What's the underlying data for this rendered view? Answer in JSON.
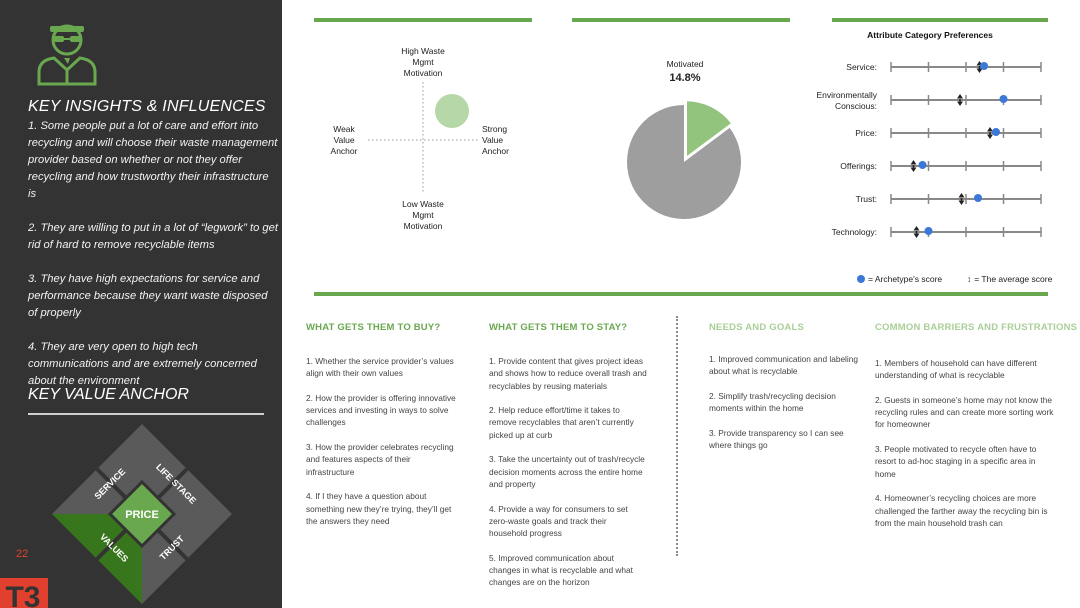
{
  "left_panel": {
    "key_insights_title": "KEY INSIGHTS & INFLUENCES",
    "insights": [
      "1. Some people put a lot of care and effort into recycling and will choose their waste management provider based on whether or not they offer recycling and how trustworthy their infrastructure is",
      "2. They are willing to put in a lot of “legwork” to get rid of hard to remove recyclable items",
      "3. They have high expectations for service and performance because they want waste disposed of properly",
      "4. They are very open to high tech communications and are extremely concerned about the environment"
    ],
    "key_value_anchor_title": "KEY VALUE ANCHOR",
    "diamond": {
      "center": "PRICE",
      "top_left": "SERVICE",
      "top_right": "LIFE STAGE",
      "bottom_left": "VALUES",
      "bottom_right": "TRUST",
      "highlighted": [
        "PRICE",
        "VALUES"
      ]
    },
    "page_number": "22",
    "logo_text": "T3"
  },
  "quadrant": {
    "top": "High Waste Mgmt Motivation",
    "bottom": "Low Waste Mgmt Motivation",
    "left": "Weak Value Anchor",
    "right": "Strong Value Anchor",
    "bubble_position": "upper-right"
  },
  "pie": {
    "label": "Motivated",
    "value_text": "14.8%",
    "percent": 14.8,
    "colors": {
      "highlight": "#93c47d",
      "rest": "#9e9e9e"
    }
  },
  "attributes": {
    "title": "Attribute Category Preferences",
    "scale_ticks": 5,
    "items": [
      {
        "label": "Service:",
        "archetype": 0.62,
        "average": 0.59
      },
      {
        "label": "Environmentally Conscious:",
        "archetype": 0.75,
        "average": 0.46
      },
      {
        "label": "Price:",
        "archetype": 0.7,
        "average": 0.66
      },
      {
        "label": "Offerings:",
        "archetype": 0.21,
        "average": 0.15
      },
      {
        "label": "Trust:",
        "archetype": 0.58,
        "average": 0.47
      },
      {
        "label": "Technology:",
        "archetype": 0.25,
        "average": 0.17
      }
    ],
    "legend_archetype": "= Archetype's score",
    "legend_average": "= The average score",
    "colors": {
      "archetype": "#3c78d8",
      "line": "#888888"
    }
  },
  "columns": [
    {
      "heading": "WHAT GETS THEM TO BUY?",
      "items": [
        "1. Whether the service provider’s values align with their own values",
        "2. How the provider is offering innovative services and investing in ways to solve challenges",
        "3. How the provider celebrates recycling and features aspects of their infrastructure",
        "4. If I they have a question about something new they’re trying, they’ll get the answers they need"
      ]
    },
    {
      "heading": "WHAT GETS THEM TO STAY?",
      "items": [
        "1. Provide content that gives project ideas and shows how to reduce overall trash and recyclables by reusing materials",
        "2. Help reduce effort/time it takes to remove recyclables that aren’t currently picked up at curb",
        "3. Take the uncertainty out of trash/recycle decision moments across the entire home and property",
        "4. Provide a way for consumers to set zero-waste goals and track their household progress",
        "5. Improved communication about changes in what is recyclable and what changes are on the horizon"
      ]
    },
    {
      "heading": "NEEDS AND GOALS",
      "items": [
        "1. Improved communication and labeling about what is recyclable",
        "2. Simplify trash/recycling decision moments within the home",
        "3. Provide transparency so I can see where things go"
      ]
    },
    {
      "heading": "COMMON BARRIERS AND FRUSTRATIONS",
      "items": [
        "1. Members of household can have different understanding of what is recyclable",
        "2. Guests in someone’s home may not know the recycling rules and can create more sorting work for homeowner",
        "3. People motivated to recycle often have to resort to ad-hoc staging in a specific area in home",
        "4. Homeowner’s recycling choices are more challenged the farther away the recycling bin is from the main household trash can"
      ]
    }
  ],
  "colors": {
    "accent_green": "#6aa84f",
    "light_green": "#a9cf97",
    "dark_panel": "#333333",
    "brand_red": "#e0402d"
  }
}
